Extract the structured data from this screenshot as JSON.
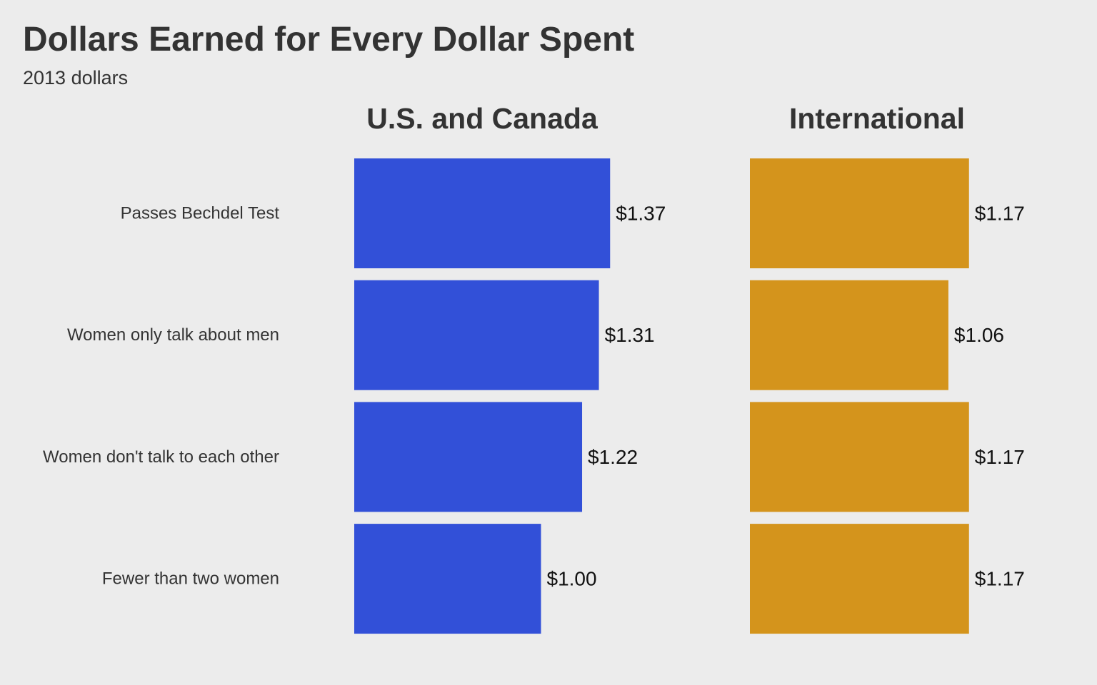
{
  "chart_data": {
    "type": "bar",
    "orientation": "horizontal",
    "title": "Dollars Earned for Every Dollar Spent",
    "subtitle": "2013 dollars",
    "categories": [
      "Passes Bechdel Test",
      "Women only talk about men",
      "Women don't talk to each other",
      "Fewer than two women"
    ],
    "panels": [
      {
        "name": "U.S. and Canada",
        "color": "#3250d8",
        "values": [
          1.37,
          1.31,
          1.22,
          1.0
        ],
        "labels": [
          "$1.37",
          "$1.31",
          "$1.22",
          "$1.00"
        ]
      },
      {
        "name": "International",
        "color": "#d4941c",
        "values": [
          1.17,
          1.06,
          1.17,
          1.17
        ],
        "labels": [
          "$1.17",
          "$1.06",
          "$1.17",
          "$1.17"
        ]
      }
    ],
    "xlim": [
      0,
      1.37
    ],
    "grid": false,
    "legend": "none"
  }
}
